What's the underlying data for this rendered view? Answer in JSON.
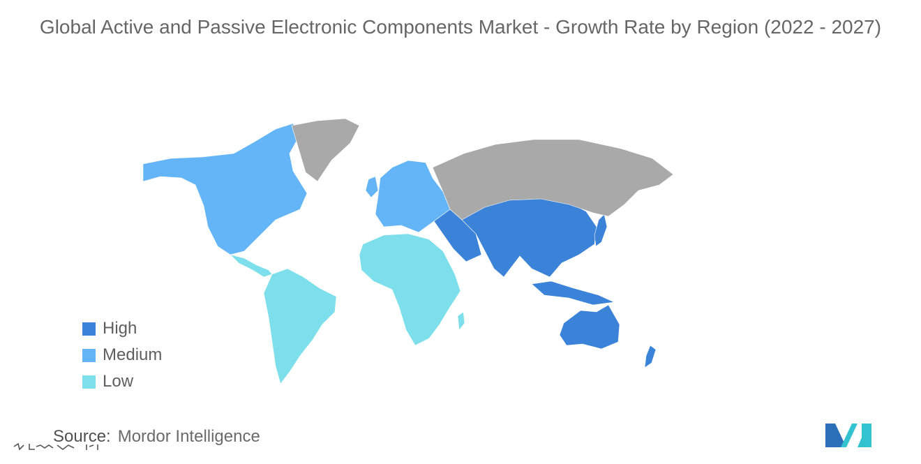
{
  "chart_data": {
    "type": "choropleth-map",
    "title": "Global Active and Passive Electronic Components Market - Growth Rate by Region (2022 - 2027)",
    "legend": [
      {
        "label": "High",
        "color": "#3b82d9"
      },
      {
        "label": "Medium",
        "color": "#63b5f7"
      },
      {
        "label": "Low",
        "color": "#7ddfec"
      }
    ],
    "no_data_color": "#a9a9a9",
    "legend_position": "bottom-left"
  },
  "source": {
    "key": "Source:",
    "value": "Mordor Intelligence"
  },
  "logo": {
    "colors": [
      "#2a6fb8",
      "#33c2cf"
    ]
  }
}
